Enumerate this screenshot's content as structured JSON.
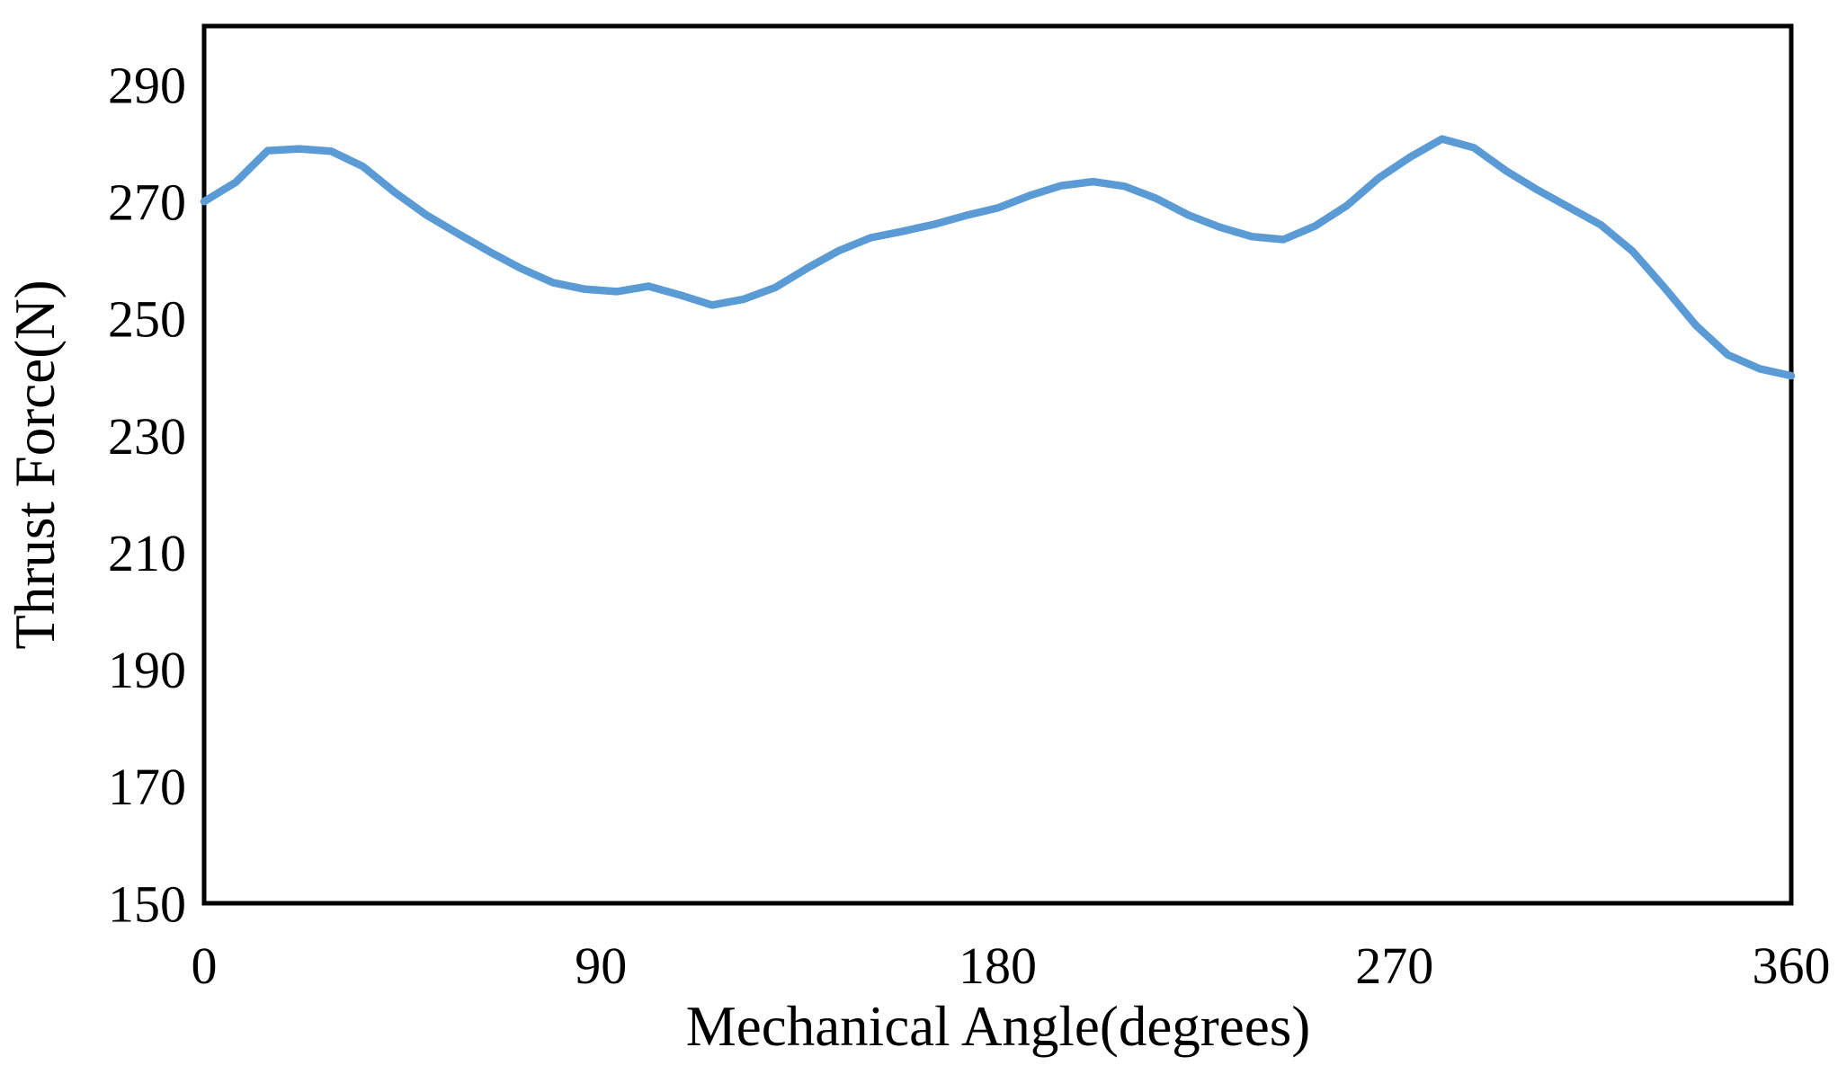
{
  "chart_data": {
    "type": "line",
    "title": "",
    "xlabel": "Mechanical Angle(degrees)",
    "ylabel": "Thrust Force(N)",
    "xlim": [
      0,
      360
    ],
    "ylim": [
      150,
      300
    ],
    "xticks": [
      0,
      90,
      180,
      270,
      360
    ],
    "yticks": [
      150,
      170,
      190,
      210,
      230,
      250,
      270,
      290
    ],
    "grid": false,
    "legend_position": "none",
    "frame_color": "#000000",
    "background_color": "#ffffff",
    "line_color": "#5b9bd5",
    "line_width": 8.5,
    "series": [
      {
        "name": "Thrust Force",
        "x": [
          0,
          7.2,
          14.4,
          21.6,
          28.8,
          36,
          43.2,
          50.4,
          57.6,
          64.8,
          72,
          79.2,
          86.4,
          93.6,
          100.8,
          108,
          115.2,
          122.4,
          129.6,
          136.8,
          144,
          151.2,
          158.4,
          165.6,
          172.8,
          180,
          187.2,
          194.4,
          201.6,
          208.8,
          216,
          223.2,
          230.4,
          237.6,
          244.8,
          252,
          259.2,
          266.4,
          273.6,
          280.8,
          288,
          295.2,
          302.4,
          309.6,
          316.8,
          324,
          331.2,
          338.4,
          345.6,
          352.8,
          360
        ],
        "y": [
          270.0,
          273.3,
          278.7,
          279.0,
          278.6,
          276.0,
          271.6,
          267.7,
          264.5,
          261.4,
          258.5,
          256.1,
          255.0,
          254.6,
          255.5,
          254.0,
          252.3,
          253.3,
          255.3,
          258.6,
          261.6,
          263.8,
          264.9,
          266.1,
          267.6,
          268.9,
          271.0,
          272.7,
          273.4,
          272.6,
          270.5,
          267.7,
          265.6,
          264.0,
          263.5,
          265.8,
          269.3,
          274.0,
          277.6,
          280.7,
          279.2,
          275.3,
          272.0,
          269.0,
          266.0,
          261.5,
          255.3,
          248.8,
          243.8,
          241.4,
          240.2
        ]
      }
    ]
  }
}
